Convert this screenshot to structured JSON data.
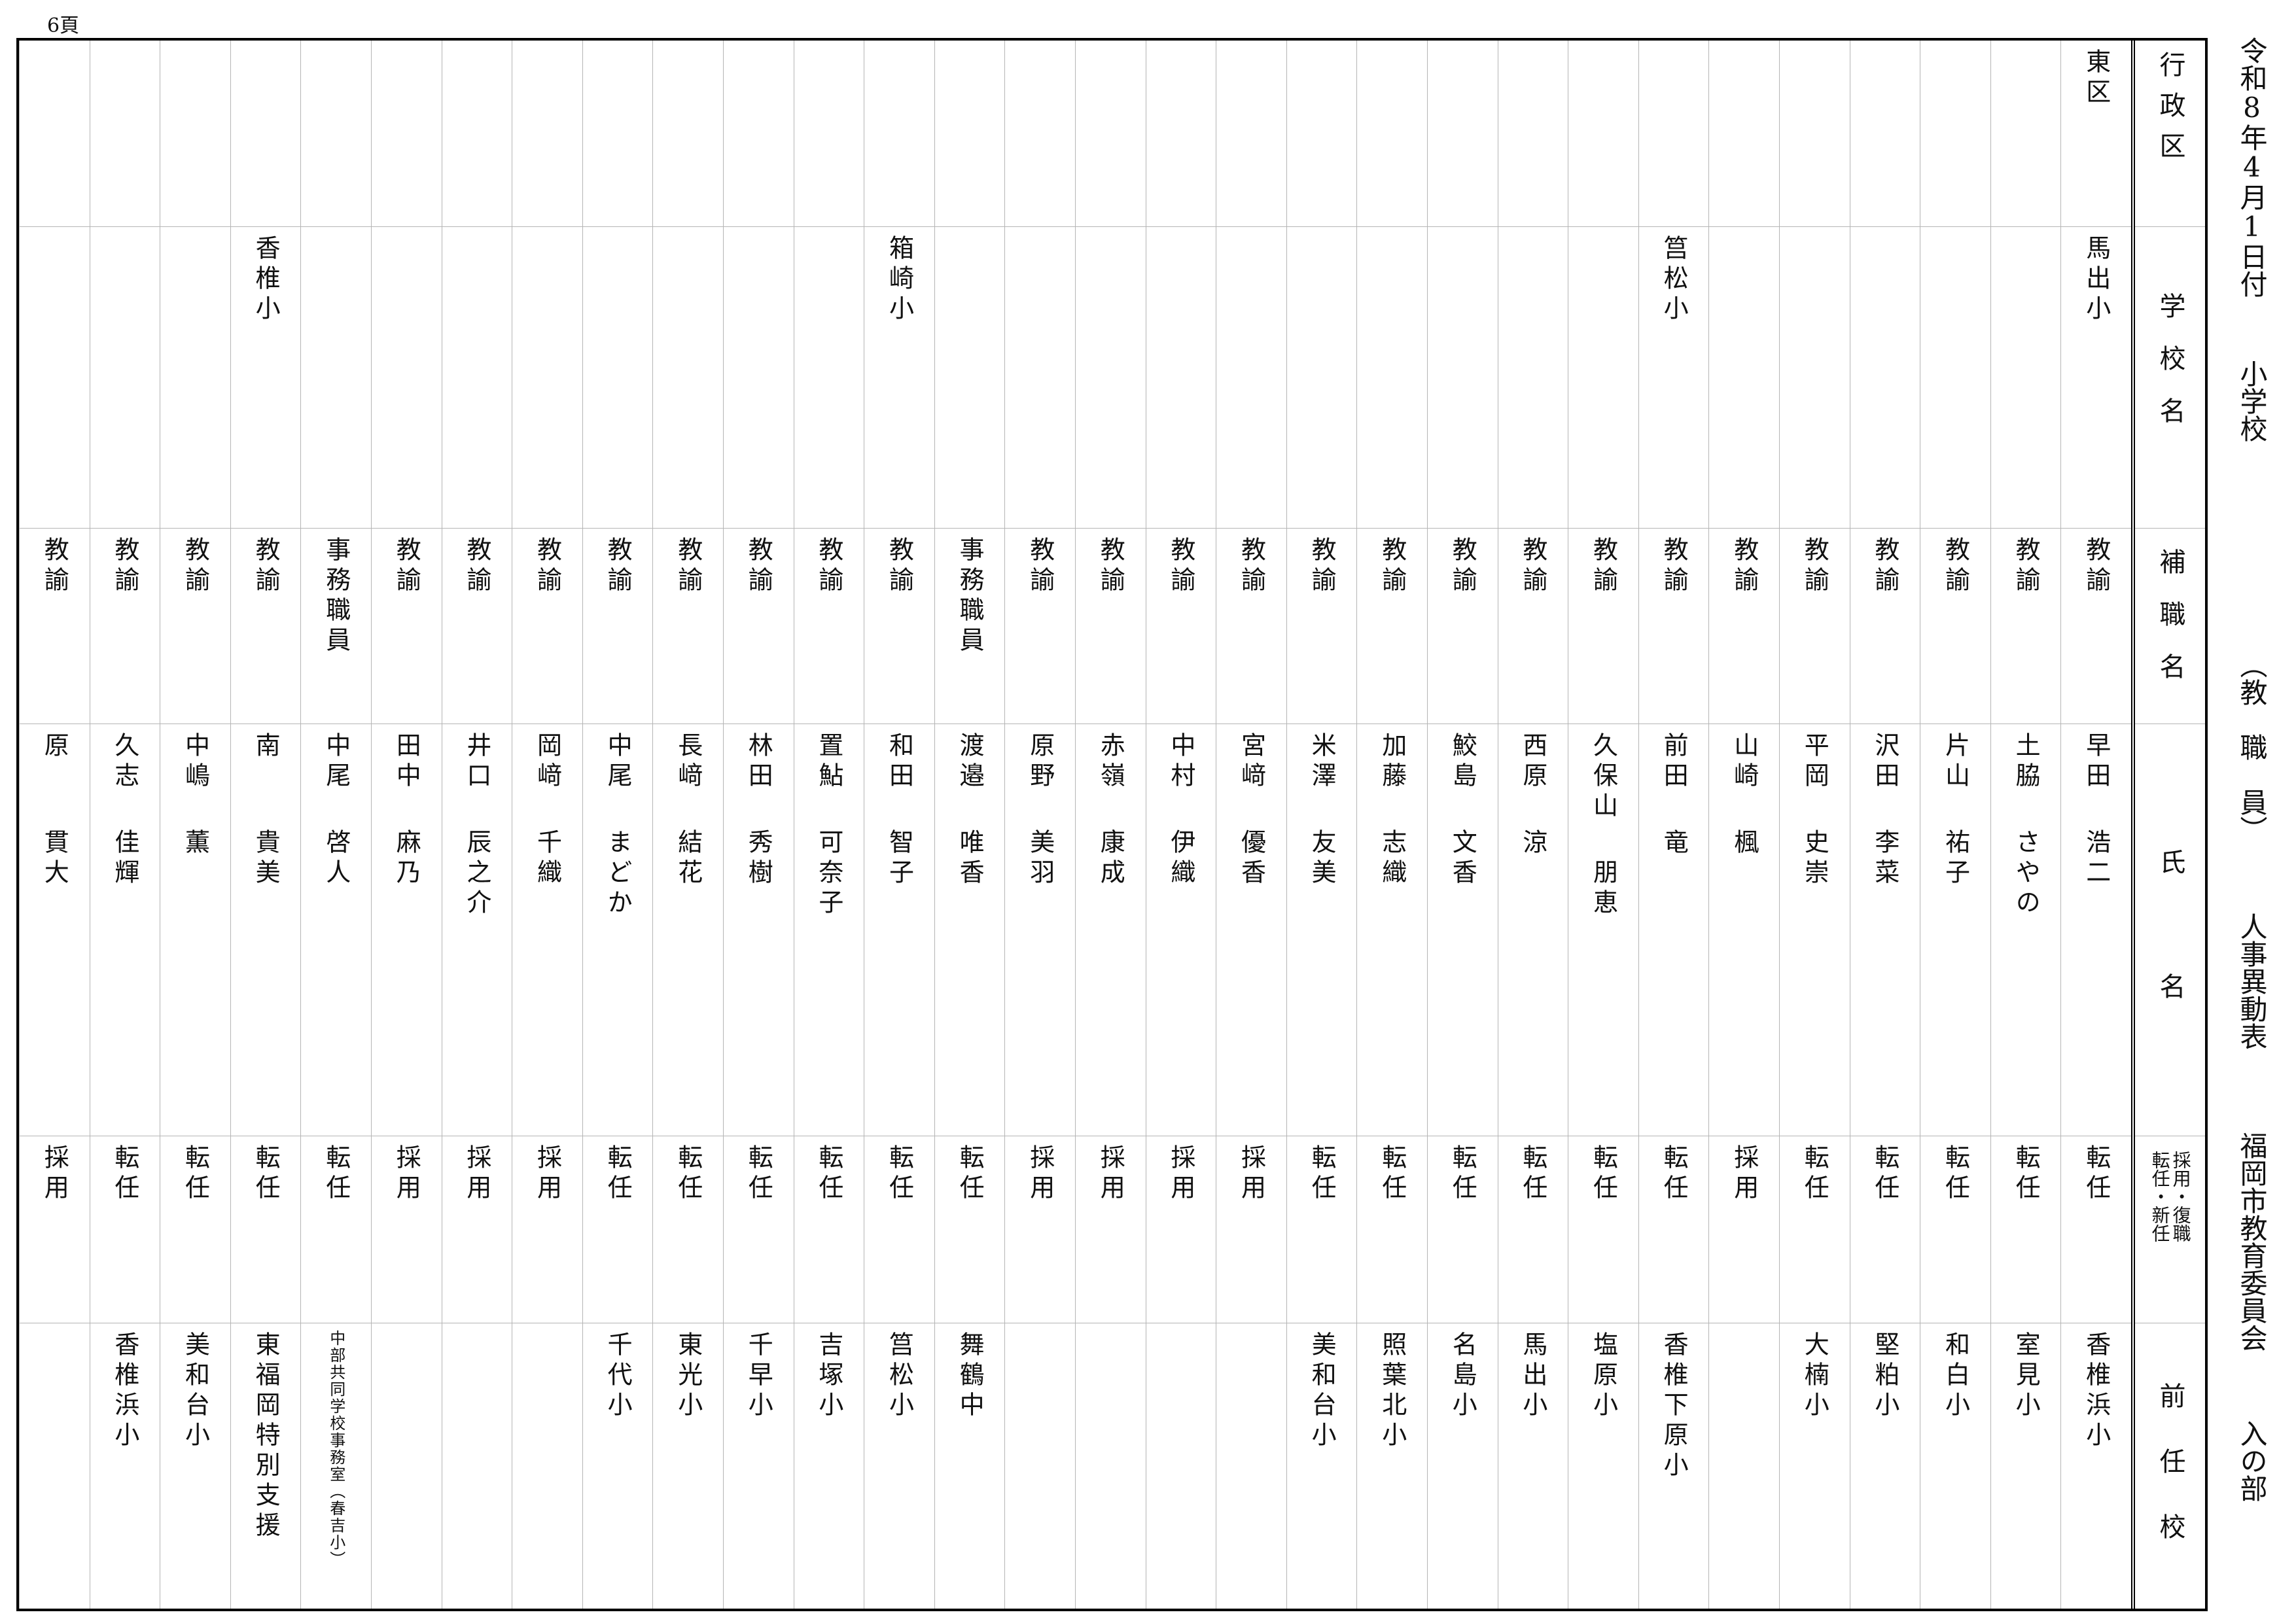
{
  "page_number": "6頁",
  "title": {
    "date": "令和8年4月1日付",
    "category": "小学校",
    "staff": "（教　職　員）",
    "doc": "人事異動表",
    "org": "福岡市教育委員会",
    "section": "入の部"
  },
  "headers": {
    "ward": "行政区",
    "school": "学校名",
    "position": "補職名",
    "name": "氏名",
    "type_a": "採用・復職",
    "type_b": "転任・新任",
    "previous": "前任校"
  },
  "rows": [
    {
      "ward": "東区",
      "school": "馬出小",
      "position": "教諭",
      "family": "早田",
      "given": "浩二",
      "type": "転任",
      "previous": "香椎浜小"
    },
    {
      "ward": "",
      "school": "",
      "position": "教諭",
      "family": "土脇",
      "given": "さやの",
      "type": "転任",
      "previous": "室見小"
    },
    {
      "ward": "",
      "school": "",
      "position": "教諭",
      "family": "片山",
      "given": "祐子",
      "type": "転任",
      "previous": "和白小"
    },
    {
      "ward": "",
      "school": "",
      "position": "教諭",
      "family": "沢田",
      "given": "李菜",
      "type": "転任",
      "previous": "堅粕小"
    },
    {
      "ward": "",
      "school": "",
      "position": "教諭",
      "family": "平岡",
      "given": "史崇",
      "type": "転任",
      "previous": "大楠小"
    },
    {
      "ward": "",
      "school": "",
      "position": "教諭",
      "family": "山崎",
      "given": "楓",
      "type": "採用",
      "previous": ""
    },
    {
      "ward": "",
      "school": "筥松小",
      "position": "教諭",
      "family": "前田",
      "given": "竜",
      "type": "転任",
      "previous": "香椎下原小"
    },
    {
      "ward": "",
      "school": "",
      "position": "教諭",
      "family": "久保山",
      "given": "朋恵",
      "type": "転任",
      "previous": "塩原小"
    },
    {
      "ward": "",
      "school": "",
      "position": "教諭",
      "family": "西原",
      "given": "涼",
      "type": "転任",
      "previous": "馬出小"
    },
    {
      "ward": "",
      "school": "",
      "position": "教諭",
      "family": "鮫島",
      "given": "文香",
      "type": "転任",
      "previous": "名島小"
    },
    {
      "ward": "",
      "school": "",
      "position": "教諭",
      "family": "加藤",
      "given": "志織",
      "type": "転任",
      "previous": "照葉北小"
    },
    {
      "ward": "",
      "school": "",
      "position": "教諭",
      "family": "米澤",
      "given": "友美",
      "type": "転任",
      "previous": "美和台小"
    },
    {
      "ward": "",
      "school": "",
      "position": "教諭",
      "family": "宮﨑",
      "given": "優香",
      "type": "採用",
      "previous": ""
    },
    {
      "ward": "",
      "school": "",
      "position": "教諭",
      "family": "中村",
      "given": "伊織",
      "type": "採用",
      "previous": ""
    },
    {
      "ward": "",
      "school": "",
      "position": "教諭",
      "family": "赤嶺",
      "given": "康成",
      "type": "採用",
      "previous": ""
    },
    {
      "ward": "",
      "school": "",
      "position": "教諭",
      "family": "原野",
      "given": "美羽",
      "type": "採用",
      "previous": ""
    },
    {
      "ward": "",
      "school": "",
      "position": "事務職員",
      "family": "渡邉",
      "given": "唯香",
      "type": "転任",
      "previous": "舞鶴中"
    },
    {
      "ward": "",
      "school": "箱崎小",
      "position": "教諭",
      "family": "和田",
      "given": "智子",
      "type": "転任",
      "previous": "筥松小"
    },
    {
      "ward": "",
      "school": "",
      "position": "教諭",
      "family": "置鮎",
      "given": "可奈子",
      "type": "転任",
      "previous": "吉塚小"
    },
    {
      "ward": "",
      "school": "",
      "position": "教諭",
      "family": "林田",
      "given": "秀樹",
      "type": "転任",
      "previous": "千早小"
    },
    {
      "ward": "",
      "school": "",
      "position": "教諭",
      "family": "長﨑",
      "given": "結花",
      "type": "転任",
      "previous": "東光小"
    },
    {
      "ward": "",
      "school": "",
      "position": "教諭",
      "family": "中尾",
      "given": "まどか",
      "type": "転任",
      "previous": "千代小"
    },
    {
      "ward": "",
      "school": "",
      "position": "教諭",
      "family": "岡﨑",
      "given": "千織",
      "type": "採用",
      "previous": ""
    },
    {
      "ward": "",
      "school": "",
      "position": "教諭",
      "family": "井口",
      "given": "辰之介",
      "type": "採用",
      "previous": ""
    },
    {
      "ward": "",
      "school": "",
      "position": "教諭",
      "family": "田中",
      "given": "麻乃",
      "type": "採用",
      "previous": ""
    },
    {
      "ward": "",
      "school": "",
      "position": "事務職員",
      "family": "中尾",
      "given": "啓人",
      "type": "転任",
      "previous": "中部共同学校事務室（春吉小）"
    },
    {
      "ward": "",
      "school": "香椎小",
      "position": "教諭",
      "family": "南",
      "given": "貴美",
      "type": "転任",
      "previous": "東福岡特別支援"
    },
    {
      "ward": "",
      "school": "",
      "position": "教諭",
      "family": "中嶋",
      "given": "薫",
      "type": "転任",
      "previous": "美和台小"
    },
    {
      "ward": "",
      "school": "",
      "position": "教諭",
      "family": "久志",
      "given": "佳輝",
      "type": "転任",
      "previous": "香椎浜小"
    },
    {
      "ward": "",
      "school": "",
      "position": "教諭",
      "family": "原",
      "given": "貫大",
      "type": "採用",
      "previous": ""
    }
  ]
}
